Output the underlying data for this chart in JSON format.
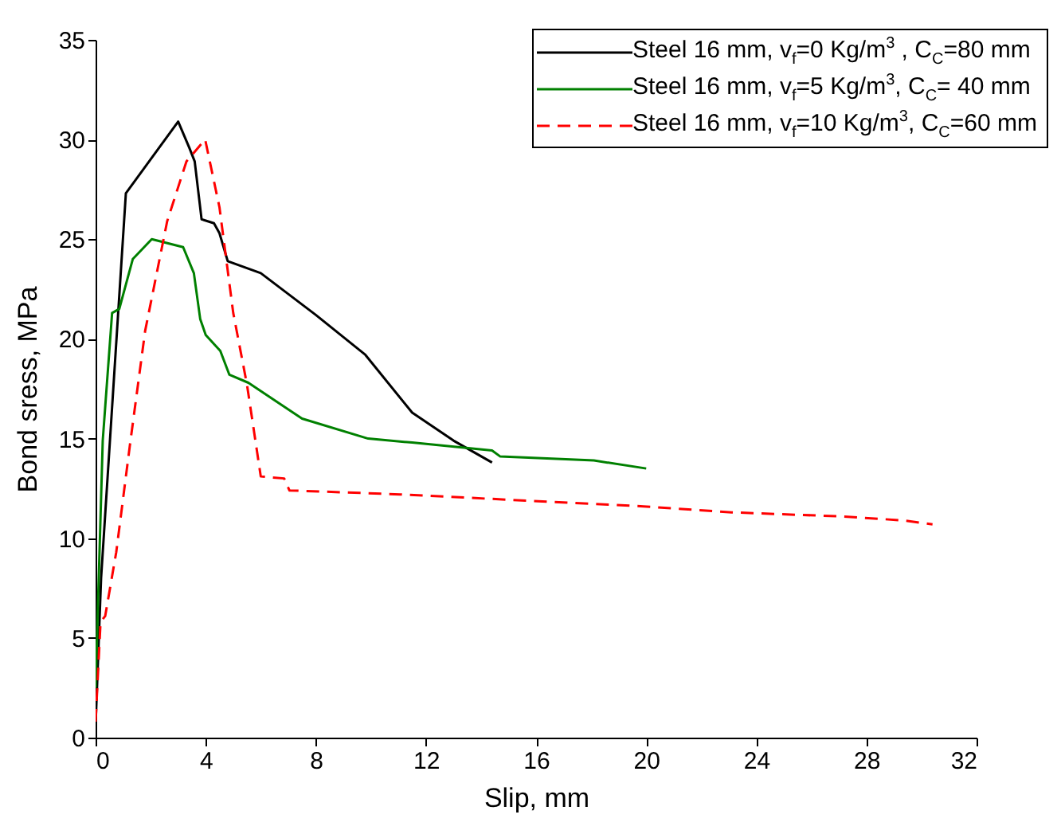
{
  "chart_data": {
    "type": "line",
    "xlabel": "Slip, mm",
    "ylabel": "Bond sress, MPa",
    "xlim": [
      0,
      32
    ],
    "xticks": [
      0,
      4,
      8,
      12,
      16,
      20,
      24,
      28,
      32
    ],
    "ylim": [
      0,
      35
    ],
    "yticks": [
      0,
      5,
      10,
      15,
      20,
      25,
      30,
      35
    ],
    "grid": false,
    "legend": "top right",
    "series": [
      {
        "name": "Steel 16 mm, v$_{f}$=0 Kg/m$^{3}$ , C$_{C}$=80 mm",
        "color": "#000000",
        "line_style": "solid",
        "x": [
          0,
          0.2,
          1.1,
          3.0,
          3.4,
          3.6,
          3.85,
          4.3,
          4.5,
          4.8,
          6,
          8,
          9.8,
          11.5,
          13,
          14.4
        ],
        "values": [
          0.6,
          8,
          27.3,
          30.9,
          29.6,
          28.9,
          26,
          25.8,
          25.3,
          23.9,
          23.3,
          21.2,
          19.2,
          16.3,
          14.9,
          13.8
        ]
      },
      {
        "name": "Steel 16 mm, v$_{f}$=5 Kg/m$^{3}$, C$_{C}$= 40 mm",
        "color": "#008000",
        "line_style": "solid",
        "x": [
          0,
          0.26,
          0.6,
          0.86,
          1.35,
          2.04,
          3.18,
          3.57,
          3.8,
          4.0,
          4.53,
          4.86,
          5.55,
          7.5,
          9.9,
          11.5,
          14.4,
          14.7,
          18.1,
          20.0
        ],
        "values": [
          2.5,
          14.9,
          21.3,
          21.5,
          24.0,
          25.0,
          24.6,
          23.3,
          21.0,
          20.2,
          19.4,
          18.2,
          17.8,
          16.0,
          15.0,
          14.8,
          14.4,
          14.1,
          13.9,
          13.5
        ]
      },
      {
        "name": "Steel 16 mm, v$_{f}$=10 Kg/m$^{3}$, C$_{C}$=60 mm",
        "color": "#ff0000",
        "line_style": "dashed",
        "x": [
          0,
          0.18,
          0.35,
          0.75,
          1.24,
          1.8,
          2.6,
          3.3,
          3.98,
          4.5,
          5.0,
          5.5,
          6.0,
          6.85,
          7.04,
          11.06,
          19.9,
          23.1,
          27.0,
          29.3,
          30.4
        ],
        "values": [
          0.8,
          5.8,
          6.1,
          9.3,
          14.6,
          20.4,
          25.9,
          28.9,
          30.0,
          26.6,
          21.3,
          17.7,
          13.1,
          13.0,
          12.4,
          12.2,
          11.6,
          11.3,
          11.1,
          10.9,
          10.7
        ]
      }
    ]
  }
}
